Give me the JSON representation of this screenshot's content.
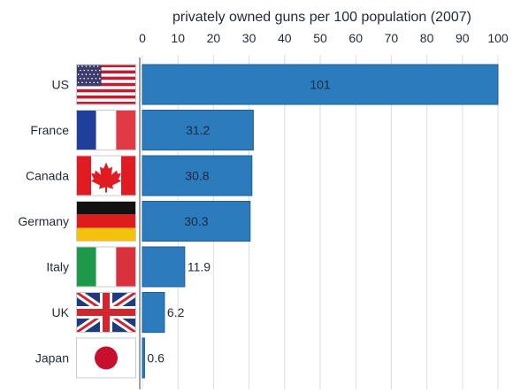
{
  "chart_data": {
    "type": "bar",
    "orientation": "horizontal",
    "title": "privately owned guns per 100 population (2007)",
    "xlabel": "",
    "ylabel": "",
    "xlim": [
      0,
      100
    ],
    "ticks": [
      0,
      10,
      20,
      30,
      40,
      50,
      60,
      70,
      80,
      90,
      100
    ],
    "grid": true,
    "categories": [
      "US",
      "France",
      "Canada",
      "Germany",
      "Italy",
      "UK",
      "Japan"
    ],
    "values": [
      101,
      31.2,
      30.8,
      30.3,
      11.9,
      6.2,
      0.6
    ],
    "value_labels": [
      "101",
      "31.2",
      "30.8",
      "30.3",
      "11.9",
      "6.2",
      "0.6"
    ],
    "flag_icons": [
      "us-flag-icon",
      "france-flag-icon",
      "canada-flag-icon",
      "germany-flag-icon",
      "italy-flag-icon",
      "uk-flag-icon",
      "japan-flag-icon"
    ],
    "colors": {
      "bar": "#2b7bbd",
      "bar_edge": "#1d5f96",
      "grid": "#d9dde2",
      "text": "#1e2a3a"
    }
  }
}
